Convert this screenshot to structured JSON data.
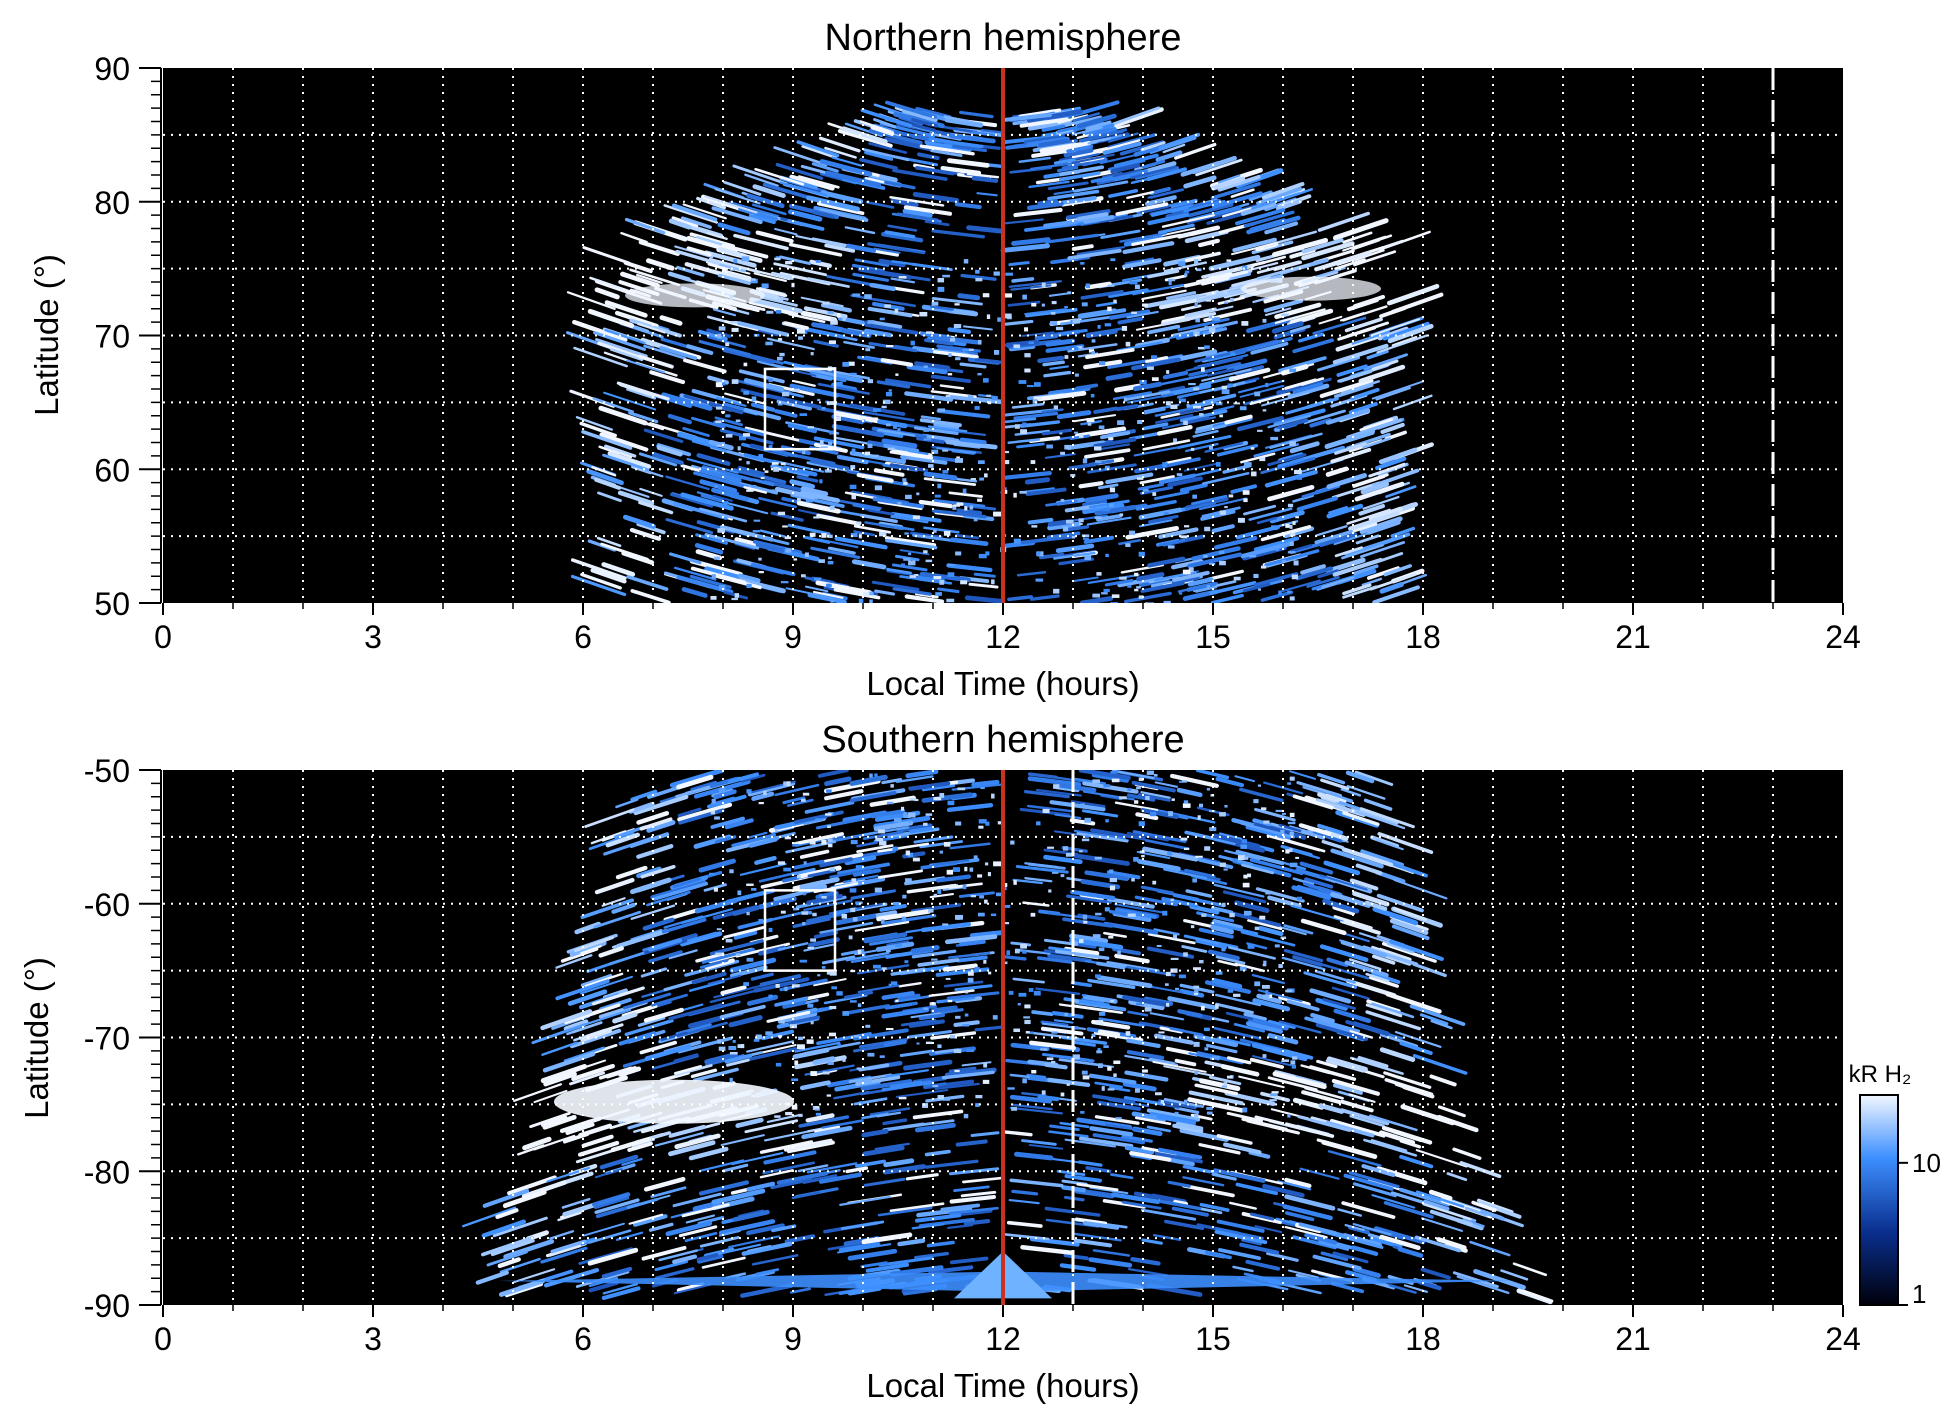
{
  "colors": {
    "background": "#000000",
    "emission_high": "#f2f7ff",
    "emission_mid": "#3d8fff",
    "emission_low": "#0a2f8f",
    "noon_line": "#c8321e",
    "grid": "#ffffff",
    "box": "#ffffff"
  },
  "chart_data": [
    {
      "type": "heatmap",
      "title": "Northern hemisphere",
      "xlabel": "Local Time (hours)",
      "ylabel": "Latitude (°)",
      "xlim": [
        0,
        24
      ],
      "ylim": [
        50,
        90
      ],
      "xticks": [
        "0",
        "3",
        "6",
        "9",
        "12",
        "15",
        "18",
        "21",
        "24"
      ],
      "yticks": [
        "50",
        "60",
        "70",
        "80",
        "90"
      ],
      "grid": true,
      "grid_lines": {
        "x_step_hours": 1,
        "y_step_deg": 5
      },
      "noon_line_hours": 12,
      "dashed_line_hours": 23,
      "region_box": {
        "lt": [
          8.6,
          9.6
        ],
        "lat": [
          61.5,
          67.5
        ]
      },
      "emission_extent": {
        "lt": [
          6.4,
          18.0
        ],
        "lat_max": 86.5
      },
      "auroral_oval_lat": 74
    },
    {
      "type": "heatmap",
      "title": "Southern hemisphere",
      "xlabel": "Local Time (hours)",
      "ylabel": "Latitude (°)",
      "xlim": [
        0,
        24
      ],
      "ylim": [
        -90,
        -50
      ],
      "xticks": [
        "0",
        "3",
        "6",
        "9",
        "12",
        "15",
        "18",
        "21",
        "24"
      ],
      "yticks": [
        "-50",
        "-60",
        "-70",
        "-80",
        "-90"
      ],
      "grid": true,
      "grid_lines": {
        "x_step_hours": 1,
        "y_step_deg": 5
      },
      "noon_line_hours": 12,
      "dashed_line_hours": 13,
      "region_box": {
        "lt": [
          8.6,
          9.6
        ],
        "lat": [
          -65,
          -59
        ]
      },
      "emission_extent": {
        "lt": [
          4.8,
          19.5
        ],
        "lat_min": -89
      },
      "auroral_oval_lat": -75
    }
  ],
  "colorbar": {
    "label": "kR H₂",
    "ticks": [
      "1",
      "10"
    ],
    "scale": "log",
    "range": [
      1,
      30
    ]
  }
}
